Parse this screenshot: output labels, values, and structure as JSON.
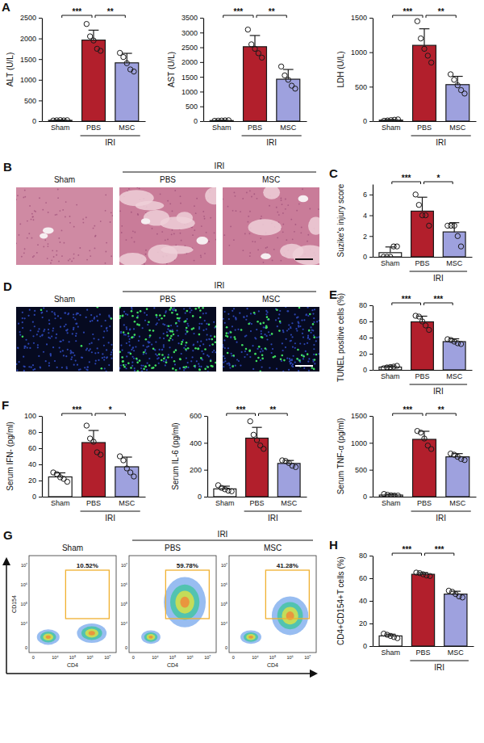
{
  "chart_data": [
    {
      "type": "bar",
      "panel": "A",
      "ylabel": "ALT (U/L)",
      "categories": [
        "Sham",
        "PBS",
        "MSC"
      ],
      "values": [
        20,
        1960,
        1410
      ],
      "errors": [
        10,
        240,
        230
      ],
      "points": [
        [
          15,
          20,
          25,
          18,
          22
        ],
        [
          2350,
          2050,
          1950,
          1750,
          1700
        ],
        [
          1650,
          1550,
          1400,
          1250,
          1200
        ]
      ],
      "colors": [
        "#ffffff",
        "#b21f2c",
        "#9ea1de"
      ],
      "ylim": [
        0,
        2500
      ],
      "yticks": [
        0,
        500,
        1000,
        1500,
        2000,
        2500
      ],
      "group": {
        "label": "IRI",
        "categories": [
          "PBS",
          "MSC"
        ]
      },
      "significance": [
        {
          "groups": [
            "Sham",
            "PBS"
          ],
          "label": "***"
        },
        {
          "groups": [
            "PBS",
            "MSC"
          ],
          "label": "**"
        }
      ]
    },
    {
      "type": "bar",
      "ylabel": "AST (U/L)",
      "categories": [
        "Sham",
        "PBS",
        "MSC"
      ],
      "values": [
        20,
        2520,
        1420
      ],
      "errors": [
        10,
        380,
        330
      ],
      "points": [
        [
          10,
          15,
          20,
          25,
          30
        ],
        [
          3100,
          2600,
          2450,
          2300,
          2150
        ],
        [
          1850,
          1550,
          1400,
          1200,
          1100
        ]
      ],
      "colors": [
        "#ffffff",
        "#b21f2c",
        "#9ea1de"
      ],
      "ylim": [
        0,
        3500
      ],
      "yticks": [
        0,
        500,
        1000,
        1500,
        2000,
        2500,
        3000,
        3500
      ],
      "group": {
        "label": "IRI",
        "categories": [
          "PBS",
          "MSC"
        ]
      },
      "significance": [
        {
          "groups": [
            "Sham",
            "PBS"
          ],
          "label": "***"
        },
        {
          "groups": [
            "PBS",
            "MSC"
          ],
          "label": "**"
        }
      ]
    },
    {
      "type": "bar",
      "ylabel": "LDH (U/L)",
      "categories": [
        "Sham",
        "PBS",
        "MSC"
      ],
      "values": [
        15,
        1100,
        530
      ],
      "errors": [
        8,
        240,
        120
      ],
      "points": [
        [
          5,
          10,
          15,
          20,
          25
        ],
        [
          1450,
          1200,
          1050,
          950,
          850
        ],
        [
          680,
          600,
          520,
          450,
          400
        ]
      ],
      "colors": [
        "#ffffff",
        "#b21f2c",
        "#9ea1de"
      ],
      "ylim": [
        0,
        1500
      ],
      "yticks": [
        0,
        500,
        1000,
        1500
      ],
      "group": {
        "label": "IRI",
        "categories": [
          "PBS",
          "MSC"
        ]
      },
      "significance": [
        {
          "groups": [
            "Sham",
            "PBS"
          ],
          "label": "***"
        },
        {
          "groups": [
            "PBS",
            "MSC"
          ],
          "label": "**"
        }
      ]
    },
    {
      "type": "bar",
      "panel": "C",
      "ylabel": "Suzike's injury score",
      "categories": [
        "Sham",
        "PBS",
        "MSC"
      ],
      "values": [
        0.4,
        4.4,
        2.4
      ],
      "errors": [
        0.55,
        1.34,
        0.89
      ],
      "points": [
        [
          0,
          0,
          0,
          1,
          1
        ],
        [
          6,
          5,
          4,
          4,
          3
        ],
        [
          3,
          3,
          3,
          2,
          1
        ]
      ],
      "colors": [
        "#ffffff",
        "#b21f2c",
        "#9ea1de"
      ],
      "ylim": [
        0,
        7
      ],
      "yticks": [
        0,
        2,
        4,
        6
      ],
      "group": {
        "label": "IRI",
        "categories": [
          "PBS",
          "MSC"
        ]
      },
      "significance": [
        {
          "groups": [
            "Sham",
            "PBS"
          ],
          "label": "***"
        },
        {
          "groups": [
            "PBS",
            "MSC"
          ],
          "label": "*"
        }
      ]
    },
    {
      "type": "bar",
      "panel": "E",
      "ylabel": "TUNEL positive cells (%)",
      "categories": [
        "Sham",
        "PBS",
        "MSC"
      ],
      "values": [
        3.5,
        59.5,
        35
      ],
      "errors": [
        1.5,
        7,
        3.5
      ],
      "points": [
        [
          2,
          3,
          3.5,
          4,
          5
        ],
        [
          67,
          66,
          60,
          55,
          49.5
        ],
        [
          38,
          37,
          35,
          33,
          32
        ]
      ],
      "colors": [
        "#ffffff",
        "#b21f2c",
        "#9ea1de"
      ],
      "ylim": [
        0,
        80
      ],
      "yticks": [
        0,
        20,
        40,
        60,
        80
      ],
      "group": {
        "label": "IRI",
        "categories": [
          "PBS",
          "MSC"
        ]
      },
      "significance": [
        {
          "groups": [
            "Sham",
            "PBS"
          ],
          "label": "***"
        },
        {
          "groups": [
            "PBS",
            "MSC"
          ],
          "label": "***"
        }
      ]
    },
    {
      "type": "bar",
      "panel": "F",
      "ylabel": "Serum IFN-  (pg/ml)",
      "categories": [
        "Sham",
        "PBS",
        "MSC"
      ],
      "values": [
        24.5,
        67,
        37
      ],
      "errors": [
        5,
        15,
        12
      ],
      "points": [
        [
          30,
          28,
          24,
          22,
          18.5
        ],
        [
          88,
          72,
          68,
          55,
          52
        ],
        [
          50,
          45,
          35,
          30,
          25
        ]
      ],
      "colors": [
        "#ffffff",
        "#b21f2c",
        "#9ea1de"
      ],
      "ylim": [
        0,
        100
      ],
      "yticks": [
        0,
        20,
        40,
        60,
        80,
        100
      ],
      "group": {
        "label": "IRI",
        "categories": [
          "PBS",
          "MSC"
        ]
      },
      "significance": [
        {
          "groups": [
            "Sham",
            "PBS"
          ],
          "label": "***"
        },
        {
          "groups": [
            "PBS",
            "MSC"
          ],
          "label": "*"
        }
      ]
    },
    {
      "type": "bar",
      "ylabel": "Serum IL-6 (pg/ml)",
      "categories": [
        "Sham",
        "PBS",
        "MSC"
      ],
      "values": [
        58,
        435,
        247
      ],
      "errors": [
        20,
        80,
        22
      ],
      "points": [
        [
          85,
          65,
          55,
          45,
          40
        ],
        [
          560,
          460,
          420,
          380,
          355
        ],
        [
          270,
          265,
          250,
          230,
          220
        ]
      ],
      "colors": [
        "#ffffff",
        "#b21f2c",
        "#9ea1de"
      ],
      "ylim": [
        0,
        600
      ],
      "yticks": [
        0,
        200,
        400,
        600
      ],
      "group": {
        "label": "IRI",
        "categories": [
          "PBS",
          "MSC"
        ]
      },
      "significance": [
        {
          "groups": [
            "Sham",
            "PBS"
          ],
          "label": "***"
        },
        {
          "groups": [
            "PBS",
            "MSC"
          ],
          "label": "**"
        }
      ]
    },
    {
      "type": "bar",
      "ylabel": "Serum TNF-α (pg/ml)",
      "categories": [
        "Sham",
        "PBS",
        "MSC"
      ],
      "values": [
        30,
        1065,
        740
      ],
      "errors": [
        15,
        150,
        60
      ],
      "points": [
        [
          50,
          35,
          25,
          20,
          20
        ],
        [
          1220,
          1190,
          1080,
          950,
          885
        ],
        [
          800,
          780,
          740,
          700,
          680
        ]
      ],
      "colors": [
        "#ffffff",
        "#b21f2c",
        "#9ea1de"
      ],
      "ylim": [
        0,
        1500
      ],
      "yticks": [
        0,
        500,
        1000,
        1500
      ],
      "group": {
        "label": "IRI",
        "categories": [
          "PBS",
          "MSC"
        ]
      },
      "significance": [
        {
          "groups": [
            "Sham",
            "PBS"
          ],
          "label": "***"
        },
        {
          "groups": [
            "PBS",
            "MSC"
          ],
          "label": "**"
        }
      ]
    },
    {
      "type": "bar",
      "panel": "H",
      "ylabel": "CD4+CD154+T cells (%)",
      "categories": [
        "Sham",
        "PBS",
        "MSC"
      ],
      "values": [
        9,
        63.5,
        46
      ],
      "errors": [
        1.5,
        1.5,
        2.5
      ],
      "points": [
        [
          11,
          10,
          9,
          8,
          7
        ],
        [
          65,
          64.5,
          63.5,
          62.5,
          62
        ],
        [
          49,
          48,
          46,
          44,
          43
        ]
      ],
      "colors": [
        "#ffffff",
        "#b21f2c",
        "#9ea1de"
      ],
      "ylim": [
        0,
        80
      ],
      "yticks": [
        0,
        20,
        40,
        60,
        80
      ],
      "group": {
        "label": "IRI",
        "categories": [
          "PBS",
          "MSC"
        ]
      },
      "significance": [
        {
          "groups": [
            "Sham",
            "PBS"
          ],
          "label": "***"
        },
        {
          "groups": [
            "PBS",
            "MSC"
          ],
          "label": "***"
        }
      ]
    }
  ],
  "images": [
    {
      "panel": "B",
      "type": "histology",
      "labels": [
        "Sham",
        "PBS",
        "MSC"
      ],
      "group": {
        "label": "IRI",
        "labels": [
          "PBS",
          "MSC"
        ]
      }
    },
    {
      "panel": "D",
      "type": "fluorescence",
      "labels": [
        "Sham",
        "PBS",
        "MSC"
      ],
      "group": {
        "label": "IRI",
        "labels": [
          "PBS",
          "MSC"
        ]
      }
    },
    {
      "panel": "G",
      "type": "flow",
      "labels": [
        "Sham",
        "PBS",
        "MSC"
      ],
      "group": {
        "label": "IRI",
        "labels": [
          "PBS",
          "MSC"
        ]
      },
      "gate_labels": [
        "10.52%",
        "59.78%",
        "41.28%"
      ],
      "xlabel": "CD4",
      "ylabel": "CD154",
      "xtick_labels": [
        "0",
        "10⁴",
        "10⁵",
        "10⁶",
        "10⁷"
      ],
      "ytick_labels": [
        "0",
        "10⁴",
        "10⁵",
        "10⁶",
        "10⁷"
      ]
    }
  ]
}
